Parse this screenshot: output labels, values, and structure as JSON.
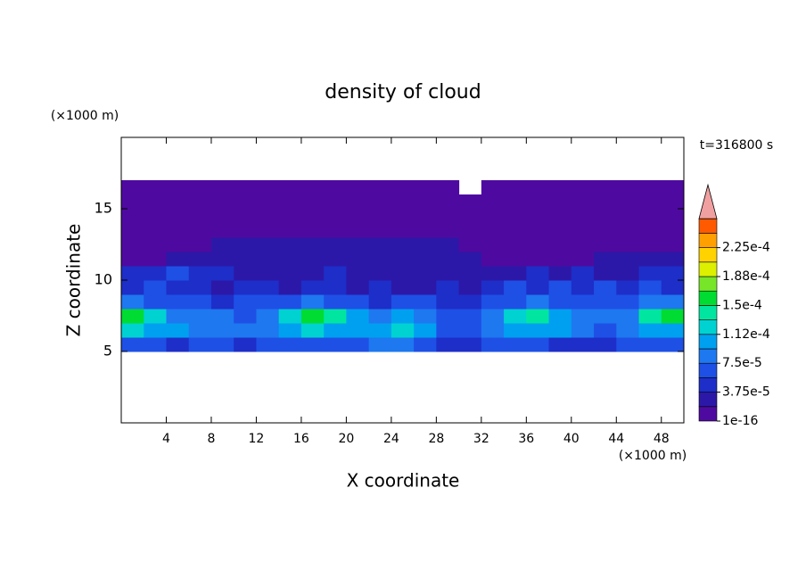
{
  "chart_data": {
    "type": "contour",
    "title": "density of cloud",
    "x_label": "X coordinate",
    "y_label": "Z coordinate",
    "x_unit": "(×1000 m)",
    "y_unit": "(×1000 m)",
    "time_label": "t=316800 s",
    "xlim": [
      0,
      50
    ],
    "ylim": [
      0,
      20
    ],
    "xticks": [
      4,
      8,
      12,
      16,
      20,
      24,
      28,
      32,
      36,
      40,
      44,
      48
    ],
    "yticks": [
      5,
      10,
      15
    ],
    "x": [
      1,
      3,
      5,
      7,
      9,
      11,
      13,
      15,
      17,
      19,
      21,
      23,
      25,
      27,
      29,
      31,
      33,
      35,
      37,
      39,
      41,
      43,
      45,
      47,
      49
    ],
    "z": [
      5.5,
      6.5,
      7.5,
      8.5,
      9.5,
      10.5,
      11.5,
      12.5,
      13.5,
      14.5,
      15.5,
      16.5
    ],
    "values": [
      [
        6e-05,
        6e-05,
        4.5e-05,
        6e-05,
        6e-05,
        4.5e-05,
        6e-05,
        6e-05,
        6e-05,
        6e-05,
        6e-05,
        8e-05,
        8e-05,
        6e-05,
        4.5e-05,
        4.5e-05,
        6e-05,
        6e-05,
        6e-05,
        4.5e-05,
        4.5e-05,
        4.5e-05,
        6e-05,
        6e-05,
        6e-05
      ],
      [
        0.00012,
        0.0001,
        0.0001,
        8e-05,
        8e-05,
        8e-05,
        8e-05,
        0.0001,
        0.00012,
        0.0001,
        0.0001,
        0.0001,
        0.00012,
        0.0001,
        6e-05,
        6e-05,
        8e-05,
        0.0001,
        0.0001,
        0.0001,
        8e-05,
        6e-05,
        8e-05,
        0.0001,
        0.0001
      ],
      [
        0.00016,
        0.00012,
        8e-05,
        8e-05,
        8e-05,
        6e-05,
        8e-05,
        0.00012,
        0.00016,
        0.00014,
        0.0001,
        8e-05,
        0.0001,
        8e-05,
        6e-05,
        6e-05,
        8e-05,
        0.00012,
        0.00014,
        0.0001,
        8e-05,
        8e-05,
        8e-05,
        0.00014,
        0.00016
      ],
      [
        8e-05,
        6e-05,
        6e-05,
        6e-05,
        4.5e-05,
        6e-05,
        6e-05,
        6e-05,
        8e-05,
        6e-05,
        6e-05,
        4.5e-05,
        6e-05,
        6e-05,
        4.5e-05,
        4.5e-05,
        6e-05,
        6e-05,
        8e-05,
        6e-05,
        6e-05,
        6e-05,
        6e-05,
        8e-05,
        8e-05
      ],
      [
        4.5e-05,
        6e-05,
        4.5e-05,
        4.5e-05,
        2.5e-05,
        4.5e-05,
        4.5e-05,
        2.5e-05,
        4.5e-05,
        4.5e-05,
        2.5e-05,
        4.5e-05,
        2.5e-05,
        2.5e-05,
        4.5e-05,
        2.5e-05,
        4.5e-05,
        6e-05,
        4.5e-05,
        6e-05,
        4.5e-05,
        6e-05,
        4.5e-05,
        6e-05,
        4.5e-05
      ],
      [
        4.5e-05,
        4.5e-05,
        6e-05,
        4.5e-05,
        4.5e-05,
        2.5e-05,
        2.5e-05,
        2.5e-05,
        2.5e-05,
        4.5e-05,
        2.5e-05,
        2.5e-05,
        2.5e-05,
        2.5e-05,
        2.5e-05,
        2.5e-05,
        2.5e-05,
        2.5e-05,
        4.5e-05,
        2.5e-05,
        4.5e-05,
        2.5e-05,
        2.5e-05,
        4.5e-05,
        4.5e-05
      ],
      [
        1e-05,
        1e-05,
        2.5e-05,
        2.5e-05,
        2.5e-05,
        2.5e-05,
        2.5e-05,
        2.5e-05,
        2.5e-05,
        2.5e-05,
        2.5e-05,
        2.5e-05,
        2.5e-05,
        2.5e-05,
        2.5e-05,
        2.5e-05,
        1e-05,
        1e-05,
        1e-05,
        1e-05,
        1e-05,
        2.5e-05,
        2.5e-05,
        2.5e-05,
        2.5e-05
      ],
      [
        1e-05,
        1e-05,
        1e-05,
        1e-05,
        2.5e-05,
        2.5e-05,
        2.5e-05,
        2.5e-05,
        2.5e-05,
        2.5e-05,
        2.5e-05,
        2.5e-05,
        2.5e-05,
        2.5e-05,
        2.5e-05,
        1e-05,
        1e-05,
        1e-05,
        1e-05,
        1e-05,
        1e-05,
        1e-05,
        1e-05,
        1e-05,
        1e-05
      ],
      [
        1e-05,
        1e-05,
        1e-05,
        1e-05,
        1e-05,
        1e-05,
        1e-05,
        1e-05,
        1e-05,
        1e-05,
        1e-05,
        1e-05,
        1e-05,
        1e-05,
        1e-05,
        1e-05,
        1e-05,
        1e-05,
        1e-05,
        1e-05,
        1e-05,
        1e-05,
        1e-05,
        1e-05,
        1e-05
      ],
      [
        1e-05,
        1e-05,
        1e-05,
        1e-05,
        1e-05,
        1e-05,
        1e-05,
        1e-05,
        1e-05,
        1e-05,
        1e-05,
        1e-05,
        1e-05,
        1e-05,
        1e-05,
        1e-05,
        1e-05,
        1e-05,
        1e-05,
        1e-05,
        1e-05,
        1e-05,
        1e-05,
        1e-05,
        1e-05
      ],
      [
        1e-05,
        1e-05,
        1e-05,
        1e-05,
        1e-05,
        1e-05,
        1e-05,
        1e-05,
        1e-05,
        1e-05,
        1e-05,
        1e-05,
        1e-05,
        1e-05,
        1e-05,
        1e-05,
        1e-05,
        1e-05,
        1e-05,
        1e-05,
        1e-05,
        1e-05,
        1e-05,
        1e-05,
        1e-05
      ],
      [
        1e-05,
        1e-05,
        1e-05,
        1e-05,
        1e-05,
        1e-05,
        1e-05,
        1e-05,
        1e-05,
        1e-05,
        1e-05,
        1e-05,
        1e-05,
        1e-05,
        1e-05,
        null,
        1e-05,
        1e-05,
        1e-05,
        1e-05,
        1e-05,
        1e-05,
        1e-05,
        1e-05,
        1e-05
      ]
    ],
    "levels": [
      1e-16,
      1.875e-05,
      3.75e-05,
      5.625e-05,
      7.5e-05,
      9.375e-05,
      0.0001125,
      0.00013125,
      0.00015,
      0.00016875,
      0.0001875,
      0.00020625,
      0.000225,
      0.00024375,
      0.0002625
    ],
    "colors": [
      "#4e0aa0",
      "#2c18a8",
      "#1e2ec8",
      "#1e50e6",
      "#1e78f0",
      "#00a0f0",
      "#00d2d2",
      "#00e6a0",
      "#00dc32",
      "#78e628",
      "#dcf000",
      "#ffd200",
      "#ffa000",
      "#ff5a00"
    ],
    "over_color": "#f0a0a0",
    "colorbar_ticks": [
      1e-16,
      {
        "value": 3.75e-05,
        "label": "3.75e-5"
      },
      {
        "value": 7.5e-05,
        "label": "7.5e-5"
      },
      {
        "value": 0.0001125,
        "label": "1.12e-4"
      },
      {
        "value": 0.00015,
        "label": "1.5e-4"
      },
      {
        "value": 0.0001875,
        "label": "1.88e-4"
      },
      {
        "value": 0.000225,
        "label": "2.25e-4"
      }
    ]
  }
}
